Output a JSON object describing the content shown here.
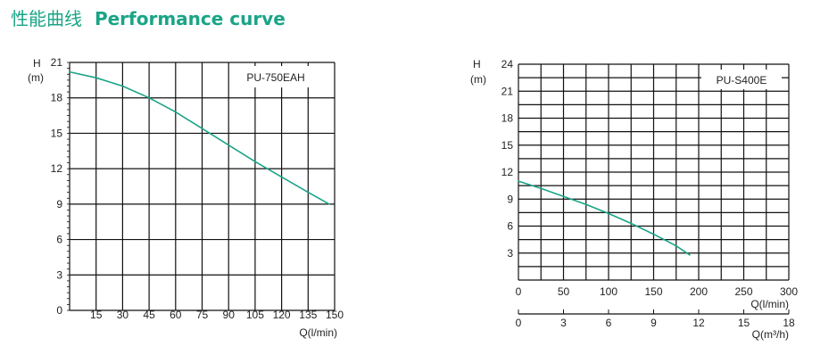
{
  "header": {
    "title_zh": "性能曲线",
    "title_en": "Performance curve"
  },
  "colors": {
    "accent": "#1aa486",
    "curve": "#1aa486",
    "grid": "#111111",
    "text": "#222222"
  },
  "chart_data": [
    {
      "type": "line",
      "model_label": "PU-750EAH",
      "ylabel": "H",
      "yunit": "(m)",
      "xlabel": "Q(l/min)",
      "ylim": [
        0,
        21
      ],
      "xlim": [
        0,
        150
      ],
      "yticks": [
        "0",
        "3",
        "6",
        "9",
        "12",
        "15",
        "18",
        "21"
      ],
      "xticks": [
        "15",
        "30",
        "45",
        "60",
        "75",
        "90",
        "105",
        "120",
        "135",
        "150"
      ],
      "grid": true,
      "series": [
        {
          "x": [
            0,
            15,
            30,
            45,
            60,
            75,
            90,
            105,
            120,
            135,
            147
          ],
          "y": [
            20.2,
            19.7,
            19.0,
            18.0,
            16.8,
            15.4,
            14.0,
            12.6,
            11.3,
            10.0,
            9.0
          ]
        }
      ]
    },
    {
      "type": "line",
      "model_label": "PU-S400E",
      "ylabel": "H",
      "yunit": "(m)",
      "xlabel": "Q(l/min)",
      "x2label": "Q(m³/h)",
      "ylim": [
        0,
        24
      ],
      "xlim": [
        0,
        300
      ],
      "yticks": [
        "3",
        "6",
        "9",
        "12",
        "15",
        "18",
        "21",
        "24"
      ],
      "xticks": [
        "0",
        "50",
        "100",
        "150",
        "200",
        "250",
        "300"
      ],
      "x2ticks": [
        "0",
        "3",
        "6",
        "9",
        "12",
        "15",
        "18"
      ],
      "grid": true,
      "series": [
        {
          "x": [
            0,
            25,
            50,
            75,
            100,
            125,
            150,
            175,
            190
          ],
          "y": [
            11.0,
            10.2,
            9.3,
            8.4,
            7.4,
            6.3,
            5.1,
            3.8,
            2.8
          ]
        }
      ]
    }
  ]
}
